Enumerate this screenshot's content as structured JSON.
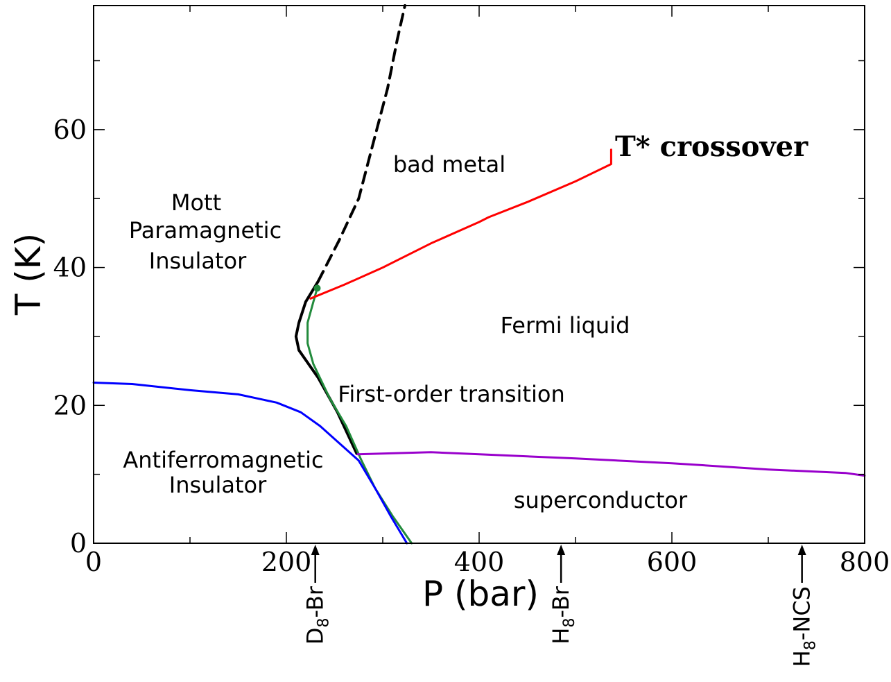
{
  "chart_data": {
    "type": "line",
    "xlabel": "P (bar)",
    "ylabel": "T (K)",
    "xlim": [
      0,
      800
    ],
    "ylim": [
      0,
      78
    ],
    "x_ticks": [
      0,
      200,
      400,
      600,
      800
    ],
    "y_ticks": [
      0,
      20,
      40,
      60
    ],
    "grid": false,
    "regions": {
      "mott": [
        "Mott",
        "Paramagnetic",
        "Insulator"
      ],
      "bad_metal": "bad metal",
      "fermi": "Fermi liquid",
      "first_order": "First-order transition",
      "afm": [
        "Antiferromagnetic",
        "Insulator"
      ],
      "sc": "superconductor"
    },
    "callout": "T* crossover",
    "markers": [
      {
        "base": "D",
        "sub": "8",
        "suffix": "-Br",
        "p": 230
      },
      {
        "base": "H",
        "sub": "8",
        "suffix": "-Br",
        "p": 485
      },
      {
        "base": "H",
        "sub": "8",
        "suffix": "-NCS",
        "p": 735
      }
    ],
    "series": [
      {
        "color": "#000000",
        "style": "dashed",
        "points": [
          [
            233,
            38
          ],
          [
            255,
            44
          ],
          [
            275,
            50
          ],
          [
            290,
            58
          ],
          [
            305,
            66
          ],
          [
            315,
            73
          ],
          [
            323,
            78
          ]
        ]
      },
      {
        "color": "#000000",
        "style": "solid",
        "points": [
          [
            273,
            13
          ],
          [
            253,
            19
          ],
          [
            233,
            24
          ],
          [
            213,
            28
          ],
          [
            210,
            30
          ],
          [
            213,
            32
          ],
          [
            220,
            35
          ],
          [
            233,
            38
          ]
        ]
      },
      {
        "color": "#228b3c",
        "style": "solid",
        "points": [
          [
            330,
            0
          ],
          [
            310,
            4
          ],
          [
            292,
            8
          ],
          [
            278,
            12
          ],
          [
            262,
            17
          ],
          [
            245,
            21
          ],
          [
            228,
            26
          ],
          [
            222,
            29
          ],
          [
            222,
            32
          ],
          [
            228,
            35
          ],
          [
            232,
            37
          ]
        ]
      },
      {
        "color": "#0000ff",
        "style": "solid",
        "points": [
          [
            0,
            23.3
          ],
          [
            40,
            23.1
          ],
          [
            100,
            22.2
          ],
          [
            150,
            21.6
          ],
          [
            190,
            20.4
          ],
          [
            215,
            19
          ],
          [
            235,
            17
          ],
          [
            255,
            14.5
          ],
          [
            275,
            12
          ],
          [
            292,
            8
          ],
          [
            308,
            4
          ],
          [
            325,
            0
          ]
        ]
      },
      {
        "color": "#ff0000",
        "style": "solid",
        "points": [
          [
            225,
            35.5
          ],
          [
            260,
            37.5
          ],
          [
            300,
            40
          ],
          [
            350,
            43.5
          ],
          [
            400,
            46.6
          ],
          [
            410,
            47.3
          ],
          [
            450,
            49.5
          ],
          [
            500,
            52.5
          ],
          [
            537,
            55
          ],
          [
            537,
            57.1
          ]
        ]
      },
      {
        "color": "#9900cc",
        "style": "solid",
        "points": [
          [
            274,
            12.9
          ],
          [
            350,
            13.2
          ],
          [
            400,
            12.9
          ],
          [
            500,
            12.3
          ],
          [
            600,
            11.6
          ],
          [
            700,
            10.7
          ],
          [
            780,
            10.2
          ],
          [
            800,
            9.8
          ]
        ]
      }
    ],
    "critical_point": {
      "p": 232,
      "t": 37,
      "color": "#228b3c"
    }
  }
}
